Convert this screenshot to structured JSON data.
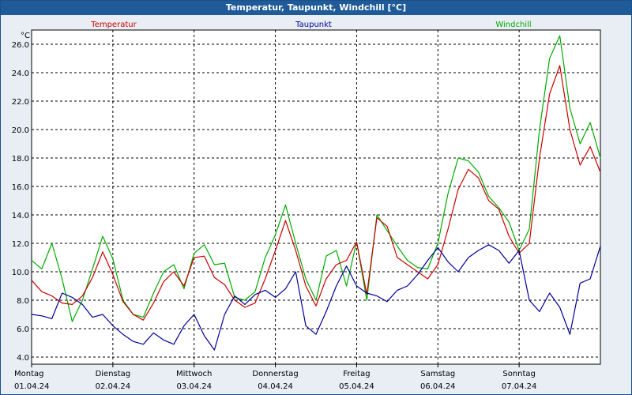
{
  "window": {
    "title": "Temperatur, Taupunkt, Windchill [°C]"
  },
  "chart_data": {
    "type": "line",
    "title": "Temperatur, Taupunkt, Windchill [°C]",
    "ylabel": "°C",
    "xlabel": "",
    "ylim": [
      3.5,
      27.0
    ],
    "yticks": [
      4.0,
      6.0,
      8.0,
      10.0,
      12.0,
      14.0,
      16.0,
      18.0,
      20.0,
      22.0,
      24.0,
      26.0
    ],
    "ytick_labels": [
      "4.0",
      "6.0",
      "8.0",
      "10.0",
      "12.0",
      "14.0",
      "16.0",
      "18.0",
      "20.0",
      "22.0",
      "24.0",
      "26.0"
    ],
    "xlim": [
      0,
      7.0
    ],
    "grid": true,
    "days": [
      {
        "weekday": "Montag",
        "date": "01.04.24"
      },
      {
        "weekday": "Dienstag",
        "date": "02.04.24"
      },
      {
        "weekday": "Mittwoch",
        "date": "03.04.24"
      },
      {
        "weekday": "Donnerstag",
        "date": "04.04.24"
      },
      {
        "weekday": "Freitag",
        "date": "05.04.24"
      },
      {
        "weekday": "Samstag",
        "date": "06.04.24"
      },
      {
        "weekday": "Sonntag",
        "date": "07.04.24"
      }
    ],
    "x": [
      0,
      0.125,
      0.25,
      0.375,
      0.5,
      0.625,
      0.75,
      0.875,
      1.0,
      1.125,
      1.25,
      1.375,
      1.5,
      1.625,
      1.75,
      1.875,
      2.0,
      2.125,
      2.25,
      2.375,
      2.5,
      2.625,
      2.75,
      2.875,
      3.0,
      3.125,
      3.25,
      3.375,
      3.5,
      3.625,
      3.75,
      3.875,
      4.0,
      4.125,
      4.25,
      4.375,
      4.5,
      4.625,
      4.75,
      4.875,
      5.0,
      5.125,
      5.25,
      5.375,
      5.5,
      5.625,
      5.75,
      5.875,
      6.0,
      6.125,
      6.25,
      6.375,
      6.5,
      6.625,
      6.75,
      6.875,
      7.0
    ],
    "series": [
      {
        "name": "Temperatur",
        "color": "#cc0000",
        "values": [
          9.4,
          8.6,
          8.3,
          7.8,
          7.7,
          8.3,
          9.6,
          11.4,
          9.8,
          7.9,
          7.0,
          6.6,
          7.8,
          9.3,
          10.0,
          9.0,
          11.0,
          11.1,
          9.6,
          9.1,
          8.0,
          7.5,
          7.8,
          9.5,
          11.5,
          13.6,
          11.5,
          9.0,
          7.6,
          9.5,
          10.5,
          10.8,
          12.1,
          8.4,
          13.8,
          13.2,
          11.0,
          10.5,
          10.0,
          9.5,
          10.5,
          13.0,
          15.8,
          17.2,
          16.6,
          15.0,
          14.4,
          12.5,
          11.3,
          12.0,
          18.0,
          22.5,
          24.5,
          20.0,
          17.5,
          18.8,
          17.0
        ]
      },
      {
        "name": "Taupunkt",
        "color": "#000099",
        "values": [
          7.0,
          6.9,
          6.7,
          8.5,
          8.2,
          7.7,
          6.8,
          7.0,
          6.2,
          5.6,
          5.1,
          4.9,
          5.7,
          5.2,
          4.9,
          6.2,
          7.0,
          5.5,
          4.5,
          7.0,
          8.3,
          7.7,
          8.4,
          8.7,
          8.2,
          8.8,
          10.0,
          6.2,
          5.6,
          7.2,
          9.0,
          10.4,
          9.0,
          8.5,
          8.3,
          7.9,
          8.7,
          9.0,
          9.8,
          10.8,
          11.7,
          10.7,
          10.0,
          11.0,
          11.5,
          11.9,
          11.5,
          10.6,
          11.5,
          8.0,
          7.2,
          8.5,
          7.5,
          5.6,
          9.2,
          9.5,
          11.8
        ]
      },
      {
        "name": "Windchill",
        "color": "#00aa00",
        "values": [
          10.8,
          10.2,
          12.0,
          9.5,
          6.5,
          8.0,
          10.2,
          12.5,
          10.9,
          8.0,
          7.0,
          6.8,
          8.5,
          10.0,
          10.5,
          8.8,
          11.3,
          11.9,
          10.5,
          10.6,
          8.2,
          8.0,
          8.6,
          11.0,
          12.6,
          14.7,
          12.0,
          9.5,
          8.0,
          11.1,
          11.5,
          9.0,
          12.1,
          8.0,
          14.0,
          12.9,
          11.8,
          10.8,
          10.3,
          10.2,
          12.0,
          15.5,
          18.0,
          17.8,
          17.0,
          15.3,
          14.5,
          13.5,
          11.5,
          13.0,
          20.0,
          25.0,
          26.6,
          21.5,
          19.0,
          20.5,
          18.0
        ]
      }
    ]
  }
}
